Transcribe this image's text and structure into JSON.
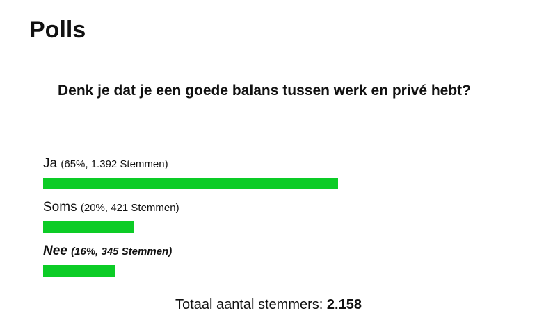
{
  "header": {
    "title": "Polls"
  },
  "poll": {
    "question": "Denk je dat je een goede balans tussen werk en privé hebt?",
    "bar_color": "#0ccc26",
    "options": [
      {
        "label": "Ja",
        "detail": "(65%, 1.392 Stemmen)",
        "percent": 65,
        "selected": false
      },
      {
        "label": "Soms",
        "detail": "(20%, 421 Stemmen)",
        "percent": 20,
        "selected": false
      },
      {
        "label": "Nee",
        "detail": "(16%, 345 Stemmen)",
        "percent": 16,
        "selected": true
      }
    ],
    "total_label": "Totaal aantal stemmers:",
    "total_value": "2.158"
  }
}
